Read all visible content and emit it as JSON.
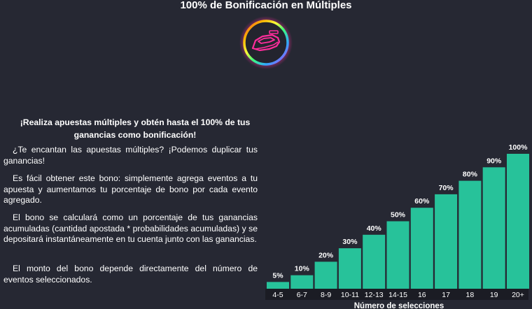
{
  "page": {
    "title": "100% de Bonificación en Múltiples",
    "logo_icon": "racing-car-icon"
  },
  "content": {
    "heading": "¡Realiza apuestas múltiples y obtén hasta el 100% de tus ganancias como bonificación!",
    "paragraphs": [
      "¿Te encantan las apuestas múltiples? ¡Podemos duplicar tus ganancias!",
      "Es fácil obtener este bono: simplemente agrega eventos a tu apuesta y aumentamos tu porcentaje de bono por cada evento agregado.",
      "El bono se calculará como un porcentaje de tus ganancias acumuladas (cantidad apostada * probabilidades acumuladas) y se depositará instantáneamente en tu cuenta junto con las ganancias.",
      "El monto del bono depende directamente del número de eventos seleccionados."
    ]
  },
  "colors": {
    "background": "#262833",
    "bar": "#27c29a",
    "axis_strip": "#1b1c24"
  },
  "chart_data": {
    "type": "bar",
    "categories": [
      "4-5",
      "6-7",
      "8-9",
      "10-11",
      "12-13",
      "14-15",
      "16",
      "17",
      "18",
      "19",
      "20+"
    ],
    "values": [
      5,
      10,
      20,
      30,
      40,
      50,
      60,
      70,
      80,
      90,
      100
    ],
    "value_labels": [
      "5%",
      "10%",
      "20%",
      "30%",
      "40%",
      "50%",
      "60%",
      "70%",
      "80%",
      "90%",
      "100%"
    ],
    "xlabel": "Número de selecciones",
    "ylabel": "",
    "ylim": [
      0,
      100
    ],
    "grid": false,
    "legend": "none"
  }
}
